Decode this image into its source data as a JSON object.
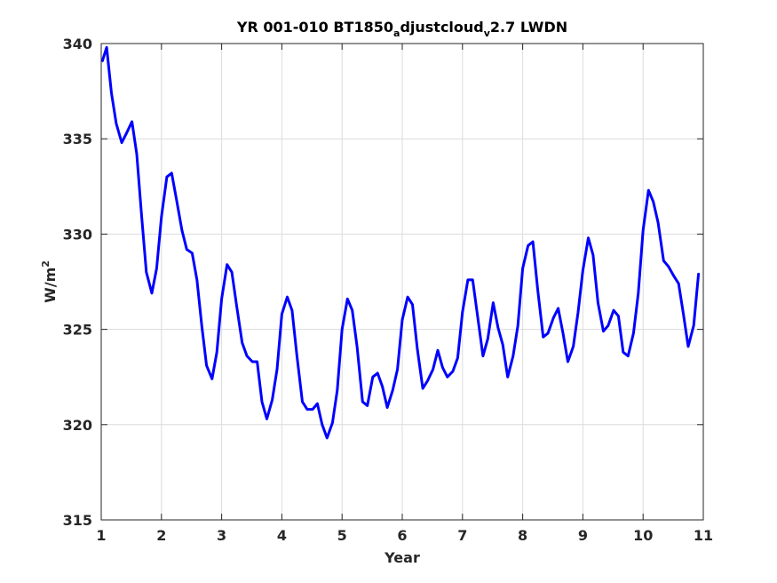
{
  "chart_data": {
    "type": "line",
    "title": {
      "part1": "YR 001-010 BT1850",
      "sub1": "a",
      "part2": "djustcloud",
      "sub2": "v",
      "part3": "2.7 LWDN"
    },
    "xlabel": "Year",
    "ylabel": {
      "base": "W/m",
      "sup": "2"
    },
    "xlim": [
      1,
      11
    ],
    "ylim": [
      315,
      340
    ],
    "xticks": [
      "1",
      "2",
      "3",
      "4",
      "5",
      "6",
      "7",
      "8",
      "9",
      "10",
      "11"
    ],
    "yticks": [
      "315",
      "320",
      "325",
      "330",
      "335",
      "340"
    ],
    "grid": true,
    "series_color": "#0000ff",
    "series": [
      {
        "x": [
          1.02,
          1.09,
          1.17,
          1.25,
          1.34,
          1.42,
          1.51,
          1.59,
          1.67,
          1.75,
          1.84,
          1.92,
          2.0,
          2.09,
          2.17,
          2.25,
          2.34,
          2.42,
          2.51,
          2.59,
          2.67,
          2.75,
          2.84,
          2.92,
          3.0,
          3.09,
          3.17,
          3.25,
          3.34,
          3.42,
          3.51,
          3.59,
          3.67,
          3.75,
          3.84,
          3.92,
          4.0,
          4.09,
          4.17,
          4.25,
          4.34,
          4.42,
          4.51,
          4.59,
          4.67,
          4.75,
          4.84,
          4.92,
          5.0,
          5.09,
          5.17,
          5.25,
          5.34,
          5.42,
          5.51,
          5.59,
          5.67,
          5.75,
          5.84,
          5.92,
          6.0,
          6.09,
          6.17,
          6.25,
          6.34,
          6.42,
          6.51,
          6.59,
          6.67,
          6.75,
          6.84,
          6.92,
          7.0,
          7.09,
          7.17,
          7.25,
          7.34,
          7.42,
          7.51,
          7.59,
          7.67,
          7.75,
          7.84,
          7.92,
          8.0,
          8.09,
          8.17,
          8.25,
          8.34,
          8.42,
          8.51,
          8.59,
          8.67,
          8.75,
          8.84,
          8.92,
          9.0,
          9.09,
          9.17,
          9.25,
          9.34,
          9.42,
          9.51,
          9.59,
          9.67,
          9.75,
          9.84,
          9.92,
          10.0,
          10.09,
          10.17,
          10.25,
          10.34,
          10.42,
          10.51,
          10.59,
          10.67,
          10.75,
          10.84,
          10.92
        ],
        "values": [
          339.1,
          339.8,
          337.4,
          335.8,
          334.8,
          335.3,
          335.9,
          334.2,
          331.0,
          328.0,
          326.9,
          328.2,
          330.9,
          333.0,
          333.2,
          331.8,
          330.2,
          329.2,
          329.0,
          327.6,
          325.2,
          323.1,
          322.4,
          323.8,
          326.6,
          328.4,
          328.0,
          326.2,
          324.3,
          323.6,
          323.3,
          323.3,
          321.2,
          320.3,
          321.3,
          322.9,
          325.8,
          326.7,
          326.0,
          323.6,
          321.2,
          320.8,
          320.8,
          321.1,
          320.0,
          319.3,
          320.1,
          321.8,
          325.0,
          326.6,
          326.0,
          324.1,
          321.2,
          321.0,
          322.5,
          322.7,
          322.0,
          320.9,
          321.8,
          322.9,
          325.5,
          326.7,
          326.3,
          324.0,
          321.9,
          322.3,
          322.9,
          323.9,
          323.0,
          322.5,
          322.8,
          323.5,
          325.9,
          327.6,
          327.6,
          325.7,
          323.6,
          324.5,
          326.4,
          325.1,
          324.2,
          322.5,
          323.6,
          325.2,
          328.2,
          329.4,
          329.6,
          327.1,
          324.6,
          324.8,
          325.6,
          326.1,
          324.8,
          323.3,
          324.1,
          325.9,
          328.1,
          329.8,
          328.9,
          326.4,
          324.9,
          325.2,
          326.0,
          325.7,
          323.8,
          323.6,
          324.8,
          326.9,
          330.2,
          332.3,
          331.7,
          330.6,
          328.6,
          328.3,
          327.8,
          327.4,
          325.8,
          324.1,
          325.2,
          327.9
        ]
      }
    ]
  }
}
